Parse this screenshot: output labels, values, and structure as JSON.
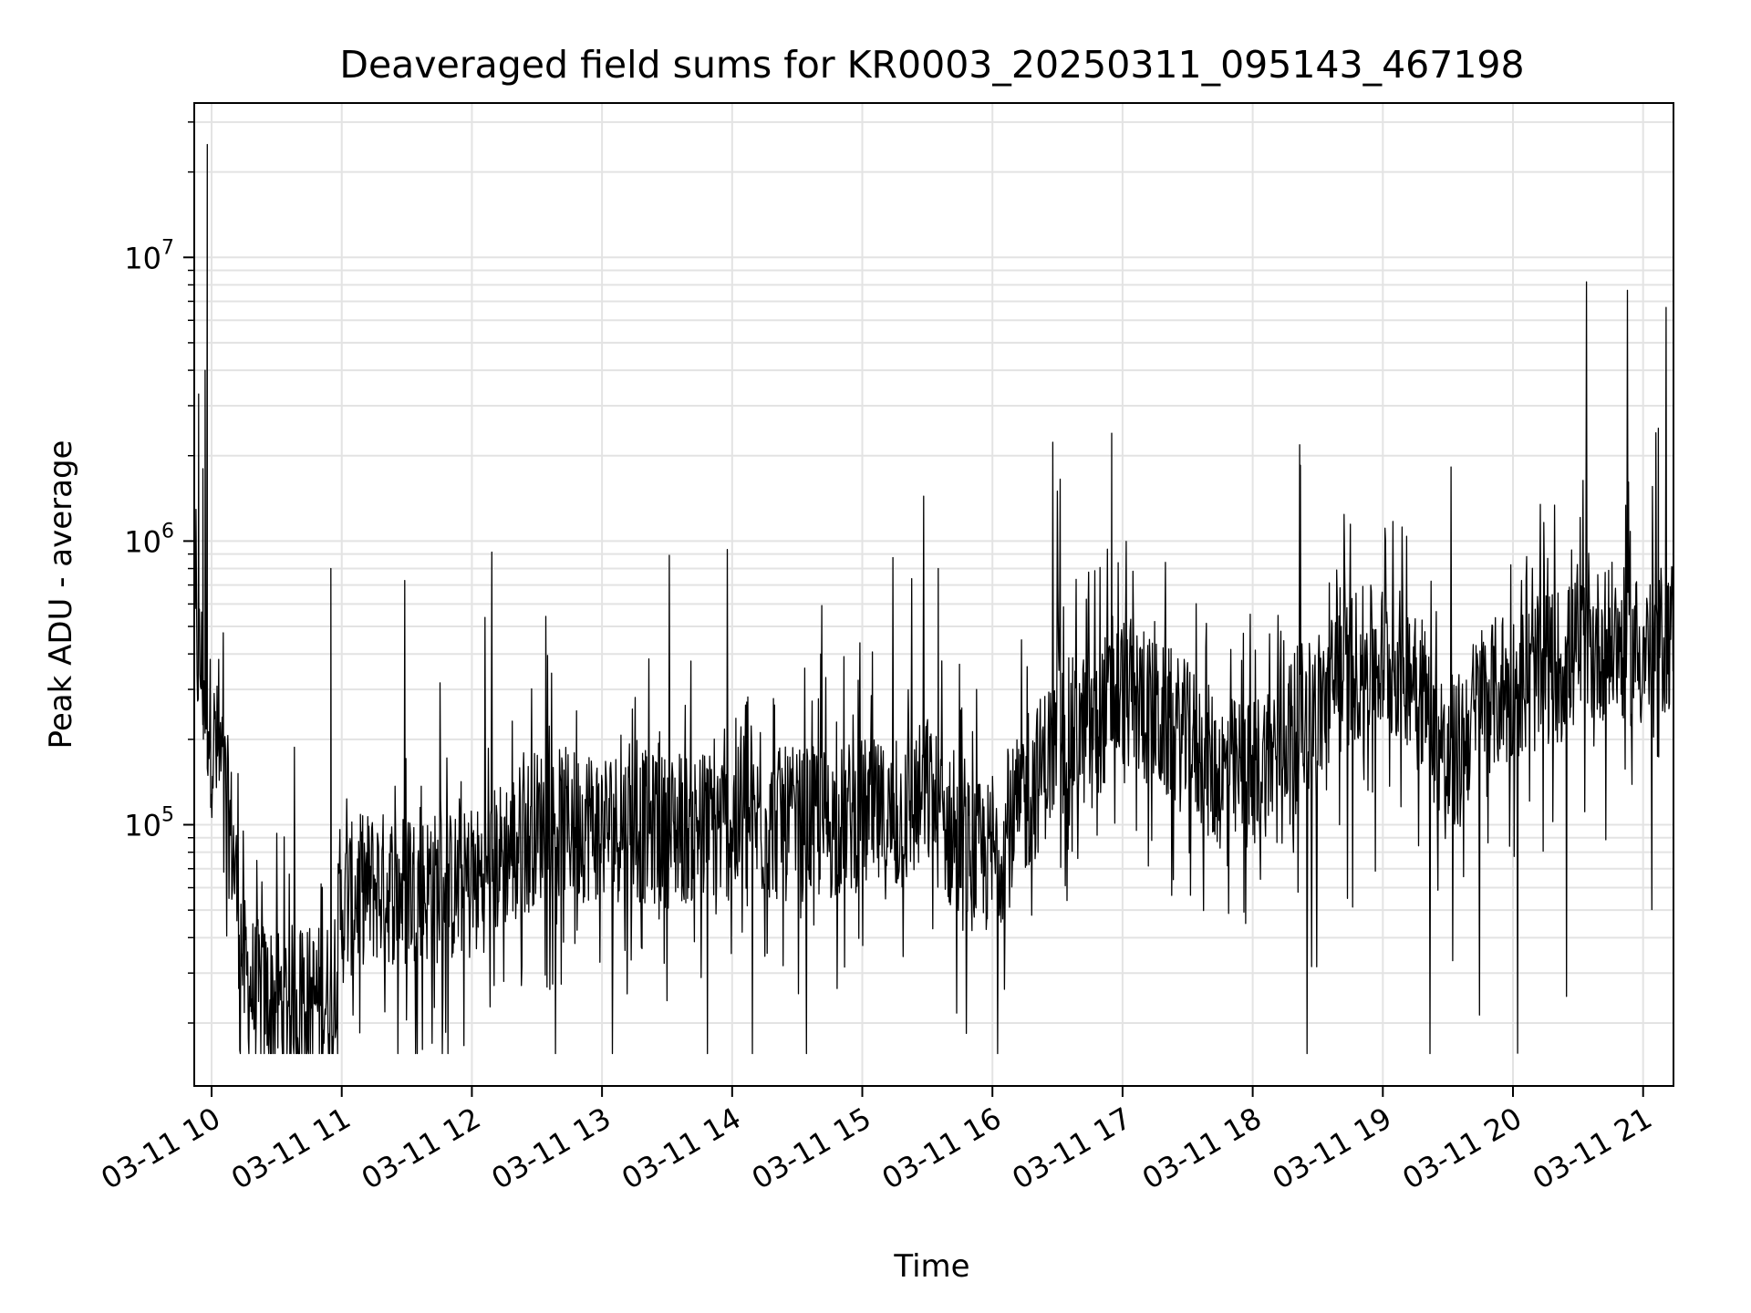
{
  "chart_data": {
    "type": "line",
    "title": "Deaveraged field sums for KR0003_20250311_095143_467198",
    "xlabel": "Time",
    "ylabel": "Peak ADU - average",
    "yscale": "log",
    "grid": true,
    "grid_minor": true,
    "line_color": "#000000",
    "grid_color": "#e3e3e3",
    "xlim": [
      "2025-03-11 09:52",
      "2025-03-11 21:14"
    ],
    "ylim": [
      12000,
      35000000
    ],
    "x_ticks": [
      {
        "value": "2025-03-11 10:00",
        "label": "03-11 10"
      },
      {
        "value": "2025-03-11 11:00",
        "label": "03-11 11"
      },
      {
        "value": "2025-03-11 12:00",
        "label": "03-11 12"
      },
      {
        "value": "2025-03-11 13:00",
        "label": "03-11 13"
      },
      {
        "value": "2025-03-11 14:00",
        "label": "03-11 14"
      },
      {
        "value": "2025-03-11 15:00",
        "label": "03-11 15"
      },
      {
        "value": "2025-03-11 16:00",
        "label": "03-11 16"
      },
      {
        "value": "2025-03-11 17:00",
        "label": "03-11 17"
      },
      {
        "value": "2025-03-11 18:00",
        "label": "03-11 18"
      },
      {
        "value": "2025-03-11 19:00",
        "label": "03-11 19"
      },
      {
        "value": "2025-03-11 20:00",
        "label": "03-11 20"
      },
      {
        "value": "2025-03-11 21:00",
        "label": "03-11 21"
      }
    ],
    "y_ticks": [
      {
        "value": 100000,
        "base": "10",
        "exp": "5"
      },
      {
        "value": 1000000,
        "base": "10",
        "exp": "6"
      },
      {
        "value": 10000000,
        "base": "10",
        "exp": "7"
      }
    ],
    "series": [
      {
        "x": [
          "2025-03-11 09:52",
          "2025-03-11 09:54",
          "2025-03-11 09:56",
          "2025-03-11 09:58",
          "2025-03-11 10:00",
          "2025-03-11 10:05",
          "2025-03-11 10:10",
          "2025-03-11 10:15",
          "2025-03-11 10:20",
          "2025-03-11 10:30",
          "2025-03-11 10:40",
          "2025-03-11 10:50",
          "2025-03-11 10:55",
          "2025-03-11 11:00",
          "2025-03-11 11:10",
          "2025-03-11 11:20",
          "2025-03-11 11:30",
          "2025-03-11 11:45",
          "2025-03-11 12:00",
          "2025-03-11 12:15",
          "2025-03-11 12:30",
          "2025-03-11 12:45",
          "2025-03-11 13:00",
          "2025-03-11 13:15",
          "2025-03-11 13:30",
          "2025-03-11 13:45",
          "2025-03-11 14:00",
          "2025-03-11 14:15",
          "2025-03-11 14:30",
          "2025-03-11 14:45",
          "2025-03-11 15:00",
          "2025-03-11 15:15",
          "2025-03-11 15:30",
          "2025-03-11 15:45",
          "2025-03-11 16:00",
          "2025-03-11 16:15",
          "2025-03-11 16:30",
          "2025-03-11 16:45",
          "2025-03-11 17:00",
          "2025-03-11 17:15",
          "2025-03-11 17:30",
          "2025-03-11 17:45",
          "2025-03-11 18:00",
          "2025-03-11 18:15",
          "2025-03-11 18:30",
          "2025-03-11 18:45",
          "2025-03-11 19:00",
          "2025-03-11 19:15",
          "2025-03-11 19:30",
          "2025-03-11 19:45",
          "2025-03-11 20:00",
          "2025-03-11 20:15",
          "2025-03-11 20:30",
          "2025-03-11 20:45",
          "2025-03-11 21:00",
          "2025-03-11 21:14"
        ],
        "y": [
          500000,
          380000,
          340000,
          260000,
          200000,
          150000,
          80000,
          30000,
          25000,
          24000,
          24000,
          24000,
          25000,
          50000,
          60000,
          60000,
          60000,
          60000,
          60000,
          80000,
          100000,
          100000,
          100000,
          100000,
          95000,
          100000,
          100000,
          100000,
          100000,
          100000,
          110000,
          100000,
          130000,
          80000,
          75000,
          120000,
          200000,
          220000,
          300000,
          240000,
          200000,
          150000,
          150000,
          210000,
          260000,
          360000,
          380000,
          350000,
          150000,
          280000,
          300000,
          350000,
          400000,
          450000,
          400000,
          480000
        ],
        "spikes": [
          {
            "x": "2025-03-11 09:54",
            "y": 3300000
          },
          {
            "x": "2025-03-11 09:56",
            "y": 1800000
          },
          {
            "x": "2025-03-11 09:57",
            "y": 4000000
          },
          {
            "x": "2025-03-11 09:58",
            "y": 25000000
          },
          {
            "x": "2025-03-11 10:55",
            "y": 800000
          },
          {
            "x": "2025-03-11 15:35",
            "y": 800000
          },
          {
            "x": "2025-03-11 16:55",
            "y": 2400000
          },
          {
            "x": "2025-03-11 18:22",
            "y": 1850000
          },
          {
            "x": "2025-03-11 21:07",
            "y": 2500000
          }
        ]
      }
    ]
  }
}
